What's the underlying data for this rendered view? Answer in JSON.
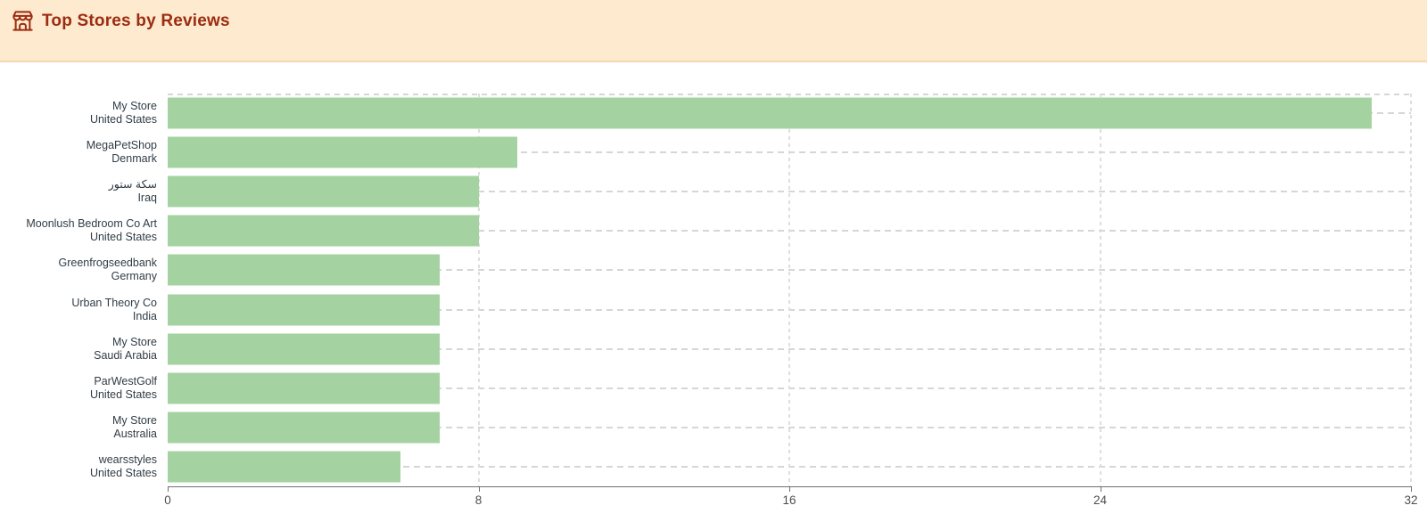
{
  "header": {
    "title": "Top Stores by Reviews",
    "icon": "storefront-icon",
    "colors": {
      "background": "#fdeacf",
      "border": "#f7d8ad",
      "title": "#9c2c11"
    }
  },
  "chart_data": {
    "type": "bar",
    "orientation": "horizontal",
    "title": "Top Stores by Reviews",
    "categories": [
      {
        "store": "My Store",
        "country": "United States"
      },
      {
        "store": "MegaPetShop",
        "country": "Denmark"
      },
      {
        "store": "سكة ستور",
        "country": "Iraq"
      },
      {
        "store": "Moonlush Bedroom Co Art",
        "country": "United States"
      },
      {
        "store": "Greenfrogseedbank",
        "country": "Germany"
      },
      {
        "store": "Urban Theory Co",
        "country": "India"
      },
      {
        "store": "My Store",
        "country": "Saudi Arabia"
      },
      {
        "store": "ParWestGolf",
        "country": "United States"
      },
      {
        "store": "My Store",
        "country": "Australia"
      },
      {
        "store": "wearsstyles",
        "country": "United States"
      }
    ],
    "series": [
      {
        "name": "Reviews",
        "values": [
          31,
          9,
          8,
          8,
          7,
          7,
          7,
          7,
          7,
          6
        ]
      }
    ],
    "xlabel": "",
    "ylabel": "",
    "xlim": [
      0,
      32
    ],
    "xticks": [
      0,
      8,
      16,
      24,
      32
    ],
    "bar_color": "#a4d3a1",
    "grid": {
      "vertical": "dashed",
      "horizontal": "dashed-at-row-centers",
      "top_border": "dashed"
    },
    "legend": "none"
  }
}
